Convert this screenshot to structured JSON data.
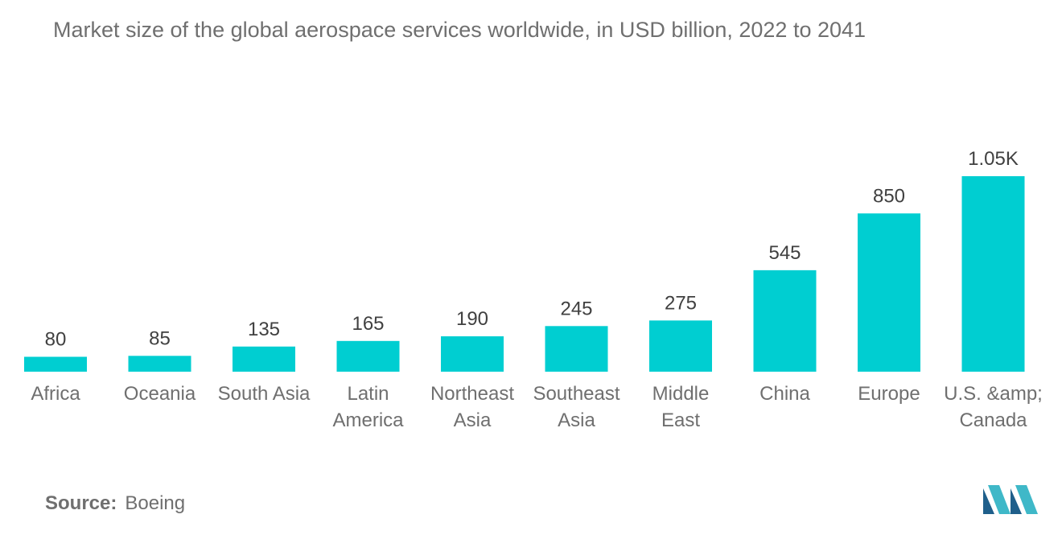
{
  "title": "Market size of the global aerospace services worldwide, in USD billion, 2022 to 2041",
  "source": {
    "label": "Source:",
    "value": "Boeing"
  },
  "colors": {
    "bar": "#00ced1",
    "text": "#6f6f6f",
    "value_text": "#404040",
    "logo_dark": "#1f5f8b",
    "logo_light": "#3fb8c8"
  },
  "chart_data": {
    "type": "bar",
    "title": "Market size of the global aerospace services worldwide, in USD billion, 2022 to 2041",
    "categories": [
      [
        "Africa"
      ],
      [
        "Oceania"
      ],
      [
        "South Asia"
      ],
      [
        "Latin",
        "America"
      ],
      [
        "Northeast",
        "Asia"
      ],
      [
        "Southeast",
        "Asia"
      ],
      [
        "Middle",
        "East"
      ],
      [
        "China"
      ],
      [
        "Europe"
      ],
      [
        "U.S. &amp;",
        "Canada"
      ]
    ],
    "values": [
      80,
      85,
      135,
      165,
      190,
      245,
      275,
      545,
      850,
      1050
    ],
    "value_labels": [
      "80",
      "85",
      "135",
      "165",
      "190",
      "245",
      "275",
      "545",
      "850",
      "1.05K"
    ],
    "xlabel": "",
    "ylabel": "",
    "ylim": [
      0,
      1050
    ],
    "grid": false,
    "legend": "none"
  }
}
